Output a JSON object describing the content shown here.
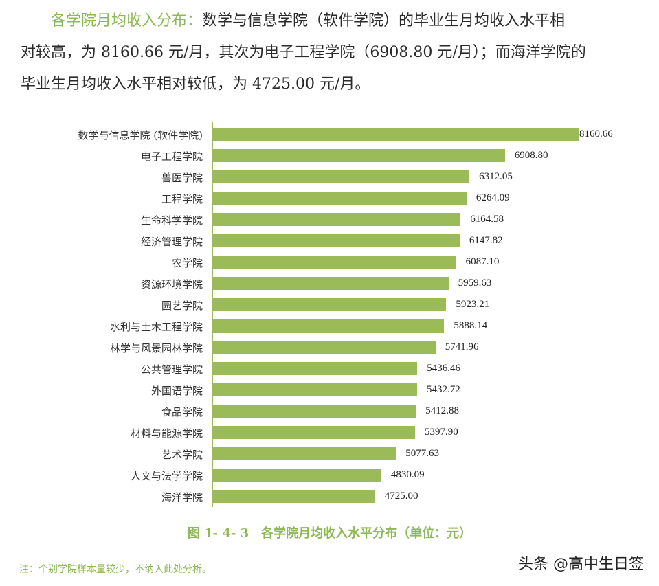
{
  "paragraph": {
    "lead": "各学院月均收入分布：",
    "line1_rest": "数学与信息学院（软件学院）的毕业生月均收入水平相",
    "line2": "对较高，为 8160.66 元/月，其次为电子工程学院（6908.80 元/月）；而海洋学院的",
    "line3": "毕业生月均收入水平相对较低，为 4725.00 元/月。"
  },
  "caption": "图 1- 4- 3　各学院月均收入水平分布（单位：元）",
  "note": "注：个别学院样本量较少，不纳入此处分析。",
  "watermark": "头条 @高中生日签",
  "colors": {
    "bar": "#9bbb59",
    "accent_text": "#8db955"
  },
  "chart_data": {
    "type": "bar",
    "orientation": "horizontal",
    "title": "各学院月均收入水平分布（单位：元）",
    "xlabel": "",
    "ylabel": "",
    "xlim": [
      2000,
      8200
    ],
    "grid": false,
    "legend": null,
    "categories": [
      "数学与信息学院 (软件学院)",
      "电子工程学院",
      "兽医学院",
      "工程学院",
      "生命科学学院",
      "经济管理学院",
      "农学院",
      "资源环境学院",
      "园艺学院",
      "水利与土木工程学院",
      "林学与风景园林学院",
      "公共管理学院",
      "外国语学院",
      "食品学院",
      "材料与能源学院",
      "艺术学院",
      "人文与法学学院",
      "海洋学院"
    ],
    "values": [
      8160.66,
      6908.8,
      6312.05,
      6264.09,
      6164.58,
      6147.82,
      6087.1,
      5959.63,
      5923.21,
      5888.14,
      5741.96,
      5436.46,
      5432.72,
      5412.88,
      5397.9,
      5077.63,
      4830.09,
      4725.0
    ],
    "value_labels": [
      "8160.66",
      "6908.80",
      "6312.05",
      "6264.09",
      "6164.58",
      "6147.82",
      "6087.10",
      "5959.63",
      "5923.21",
      "5888.14",
      "5741.96",
      "5436.46",
      "5432.72",
      "5412.88",
      "5397.90",
      "5077.63",
      "4830.09",
      "4725.00"
    ]
  }
}
